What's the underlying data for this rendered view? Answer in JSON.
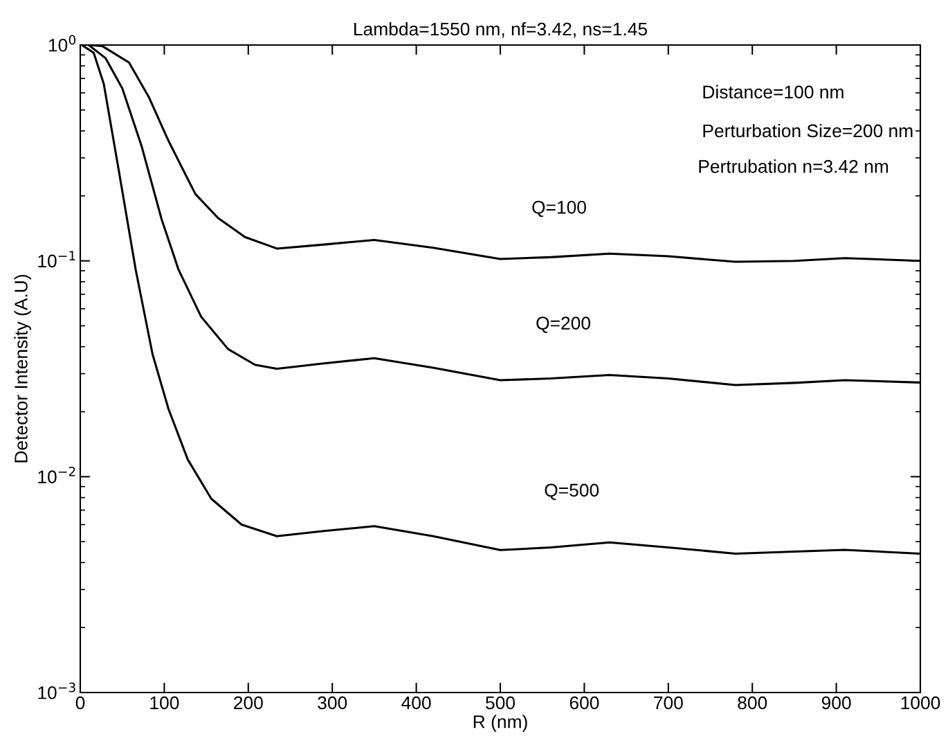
{
  "chart_data": {
    "type": "line",
    "title": "Lambda=1550 nm, nf=3.42, ns=1.45",
    "xlabel": "R (nm)",
    "ylabel": "Detector Intensity (A.U)",
    "log": "y",
    "xlim": [
      0,
      1000
    ],
    "ylim": [
      0.001,
      1
    ],
    "xticks": [
      0,
      100,
      200,
      300,
      400,
      500,
      600,
      700,
      800,
      900,
      1000
    ],
    "yticks": [
      {
        "value": 0.001,
        "label": "10$^{−3}$"
      },
      {
        "value": 0.01,
        "label": "10$^{−2}$"
      },
      {
        "value": 0.1,
        "label": "10$^{−1}$"
      },
      {
        "value": 1,
        "label": "10$^{0}$"
      }
    ],
    "grid": false,
    "marker": "none",
    "line_style": "solid",
    "series": [
      {
        "color": "#000000",
        "x": [
          12,
          26,
          58,
          82,
          105,
          137,
          164,
          196,
          234,
          290,
          350,
          420,
          500,
          560,
          630,
          700,
          780,
          850,
          910,
          1000
        ],
        "values": [
          1.0,
          0.99,
          0.83,
          0.57,
          0.36,
          0.204,
          0.158,
          0.129,
          0.114,
          0.119,
          0.125,
          0.115,
          0.102,
          0.104,
          0.108,
          0.105,
          0.099,
          0.1,
          0.103,
          0.1
        ]
      },
      {
        "color": "#000000",
        "x": [
          10,
          30,
          50,
          73,
          97,
          117,
          144,
          176,
          208,
          234,
          290,
          350,
          420,
          500,
          560,
          630,
          700,
          780,
          850,
          910,
          1000
        ],
        "values": [
          1.0,
          0.87,
          0.63,
          0.34,
          0.155,
          0.091,
          0.055,
          0.039,
          0.033,
          0.0316,
          0.0335,
          0.0354,
          0.032,
          0.028,
          0.0285,
          0.0296,
          0.0285,
          0.0266,
          0.0272,
          0.028,
          0.0273
        ]
      },
      {
        "color": "#000000",
        "x": [
          2,
          16,
          28,
          46,
          66,
          86,
          105,
          128,
          156,
          192,
          234,
          290,
          350,
          420,
          500,
          560,
          630,
          700,
          780,
          850,
          910,
          1000
        ],
        "values": [
          1.0,
          0.92,
          0.66,
          0.26,
          0.091,
          0.037,
          0.0206,
          0.012,
          0.0079,
          0.006,
          0.0053,
          0.0056,
          0.0059,
          0.0053,
          0.00457,
          0.0047,
          0.00496,
          0.0047,
          0.0044,
          0.0045,
          0.00458,
          0.0044
        ]
      }
    ],
    "annotations": [
      "Distance=100 nm",
      "Perturbation Size=200 nm",
      "Pertrubation n=3.42 nm",
      "Q=100",
      "Q=200",
      "Q=500"
    ]
  }
}
